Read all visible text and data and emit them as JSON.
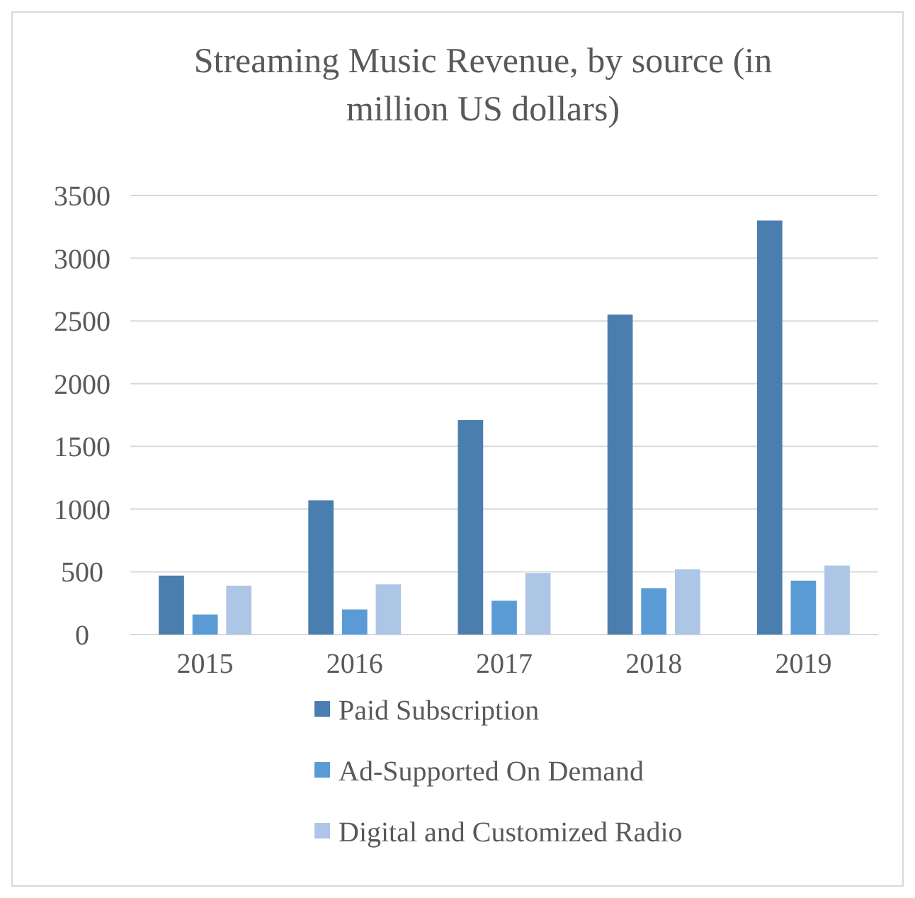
{
  "chart_data": {
    "type": "bar",
    "title": "Streaming Music Revenue, by source (in million US dollars)",
    "categories": [
      "2015",
      "2016",
      "2017",
      "2018",
      "2019"
    ],
    "series": [
      {
        "name": "Paid Subscription",
        "color": "#4a7eaf",
        "values": [
          470,
          1070,
          1710,
          2550,
          3300
        ]
      },
      {
        "name": "Ad-Supported On Demand",
        "color": "#5b9bd5",
        "values": [
          160,
          200,
          270,
          370,
          430
        ]
      },
      {
        "name": "Digital and Customized Radio",
        "color": "#adc6e5",
        "values": [
          390,
          400,
          490,
          520,
          550
        ]
      }
    ],
    "ylim": [
      0,
      3500
    ],
    "yticks": [
      0,
      500,
      1000,
      1500,
      2000,
      2500,
      3000,
      3500
    ],
    "grid": "y",
    "legend": "bottom"
  }
}
